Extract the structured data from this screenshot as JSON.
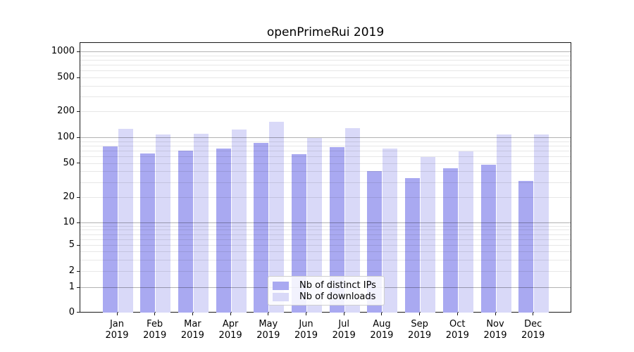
{
  "title": "openPrimeRui 2019",
  "legend": [
    {
      "label": "Nb of distinct IPs",
      "color": "#a9a9f1"
    },
    {
      "label": "Nb of downloads",
      "color": "#d9d9f8"
    }
  ],
  "chart_data": {
    "type": "bar",
    "title": "openPrimeRui 2019",
    "categories": [
      "Jan 2019",
      "Feb 2019",
      "Mar 2019",
      "Apr 2019",
      "May 2019",
      "Jun 2019",
      "Jul 2019",
      "Aug 2019",
      "Sep 2019",
      "Oct 2019",
      "Nov 2019",
      "Dec 2019"
    ],
    "series": [
      {
        "name": "Nb of distinct IPs",
        "color": "#a9a9f1",
        "values": [
          79,
          65,
          71,
          74,
          86,
          64,
          78,
          41,
          34,
          44,
          48,
          31
        ]
      },
      {
        "name": "Nb of downloads",
        "color": "#d9d9f8",
        "values": [
          126,
          108,
          111,
          125,
          152,
          100,
          130,
          75,
          59,
          69,
          108,
          108
        ]
      }
    ],
    "xlabel": "",
    "ylabel": "",
    "yscale": "symlog",
    "yticks": [
      0,
      1,
      2,
      5,
      10,
      20,
      50,
      100,
      200,
      500,
      1000
    ],
    "ylim": [
      0,
      1400
    ],
    "grid": true,
    "grid_minor": true,
    "legend_position": "lower center",
    "bar_colors_note": "paired bars per month: distinct IPs (darker) left, downloads (lighter) right"
  }
}
